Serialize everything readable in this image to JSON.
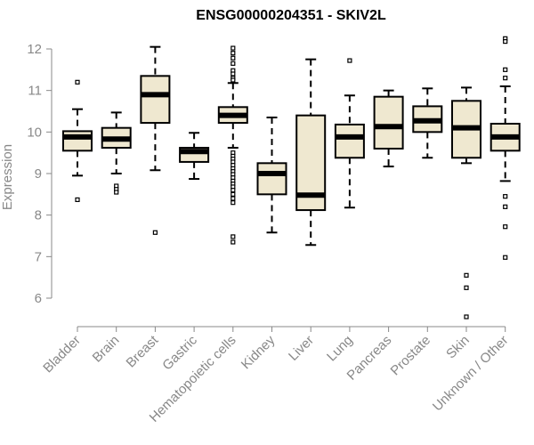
{
  "chart_data": {
    "type": "boxplot",
    "title": "ENSG00000204351 - SKIV2L",
    "ylabel": "Expression",
    "xlabel": "",
    "ylim": [
      5.4,
      12.4
    ],
    "yticks": [
      6,
      7,
      8,
      9,
      10,
      11,
      12
    ],
    "grid": false,
    "legend": "none",
    "colors": {
      "box_fill": "#efe8d0",
      "box_stroke": "#000000",
      "axis": "#888888",
      "text": "#888888"
    },
    "categories": [
      "Bladder",
      "Brain",
      "Breast",
      "Gastric",
      "Hematopoietic cells",
      "Kidney",
      "Liver",
      "Lung",
      "Pancreas",
      "Prostate",
      "Skin",
      "Unknown / Other"
    ],
    "boxes": [
      {
        "name": "Bladder",
        "whisker_low": 8.95,
        "q1": 9.55,
        "median": 9.88,
        "q3": 10.02,
        "whisker_high": 10.55,
        "outliers": [
          11.2,
          8.37
        ]
      },
      {
        "name": "Brain",
        "whisker_low": 9.0,
        "q1": 9.62,
        "median": 9.83,
        "q3": 10.1,
        "whisker_high": 10.47,
        "outliers": [
          8.7,
          8.62,
          8.55
        ]
      },
      {
        "name": "Breast",
        "whisker_low": 9.08,
        "q1": 10.22,
        "median": 10.9,
        "q3": 11.35,
        "whisker_high": 12.05,
        "outliers": [
          7.58
        ]
      },
      {
        "name": "Gastric",
        "whisker_low": 8.87,
        "q1": 9.28,
        "median": 9.53,
        "q3": 9.62,
        "whisker_high": 9.98,
        "outliers": []
      },
      {
        "name": "Hematopoietic cells",
        "whisker_low": 9.62,
        "q1": 10.22,
        "median": 10.4,
        "q3": 10.6,
        "whisker_high": 11.18,
        "outliers": [
          12.02,
          11.9,
          11.78,
          11.65,
          11.48,
          11.4,
          11.3,
          11.25,
          9.5,
          9.42,
          9.35,
          9.28,
          9.2,
          9.12,
          9.05,
          8.98,
          8.9,
          8.82,
          8.75,
          8.68,
          8.6,
          8.5,
          8.4,
          8.3,
          7.48,
          7.35
        ]
      },
      {
        "name": "Kidney",
        "whisker_low": 7.58,
        "q1": 8.5,
        "median": 9.0,
        "q3": 9.25,
        "whisker_high": 10.35,
        "outliers": []
      },
      {
        "name": "Liver",
        "whisker_low": 7.28,
        "q1": 8.12,
        "median": 8.48,
        "q3": 10.4,
        "whisker_high": 11.75,
        "outliers": []
      },
      {
        "name": "Lung",
        "whisker_low": 8.18,
        "q1": 9.38,
        "median": 9.88,
        "q3": 10.18,
        "whisker_high": 10.88,
        "outliers": [
          11.72
        ]
      },
      {
        "name": "Pancreas",
        "whisker_low": 9.17,
        "q1": 9.6,
        "median": 10.13,
        "q3": 10.85,
        "whisker_high": 11.0,
        "outliers": []
      },
      {
        "name": "Prostate",
        "whisker_low": 9.38,
        "q1": 10.0,
        "median": 10.27,
        "q3": 10.62,
        "whisker_high": 11.05,
        "outliers": []
      },
      {
        "name": "Skin",
        "whisker_low": 9.25,
        "q1": 9.38,
        "median": 10.1,
        "q3": 10.75,
        "whisker_high": 11.07,
        "outliers": [
          6.55,
          6.25,
          5.55
        ]
      },
      {
        "name": "Unknown / Other",
        "whisker_low": 8.82,
        "q1": 9.55,
        "median": 9.88,
        "q3": 10.2,
        "whisker_high": 11.1,
        "outliers": [
          12.25,
          12.18,
          11.5,
          11.3,
          8.45,
          8.2,
          7.72,
          6.98
        ]
      }
    ]
  }
}
